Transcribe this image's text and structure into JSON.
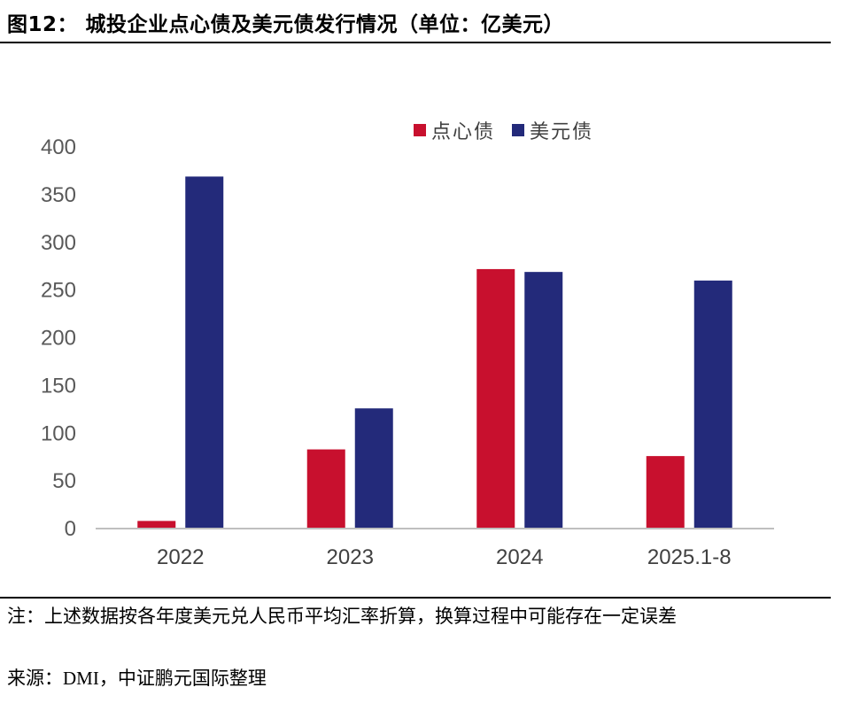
{
  "title": "图12： 城投企业点心债及美元债发行情况（单位：亿美元）",
  "chart_data": {
    "type": "bar",
    "categories": [
      "2022",
      "2023",
      "2024",
      "2025.1-8"
    ],
    "series": [
      {
        "name": "点心债",
        "color": "#C8102E",
        "values": [
          8,
          83,
          272,
          76
        ]
      },
      {
        "name": "美元债",
        "color": "#232A7A",
        "values": [
          369,
          126,
          269,
          260
        ]
      }
    ],
    "ylim": [
      0,
      400
    ],
    "yticks": [
      0,
      50,
      100,
      150,
      200,
      250,
      300,
      350,
      400
    ],
    "legend_position": "top-right",
    "grid": false
  },
  "footer": {
    "note": "注：上述数据按各年度美元兑人民币平均汇率折算，换算过程中可能存在一定误差",
    "source_prefix": "来源：",
    "source_db": "DMI",
    "source_suffix": "，中证鹏元国际整理"
  }
}
